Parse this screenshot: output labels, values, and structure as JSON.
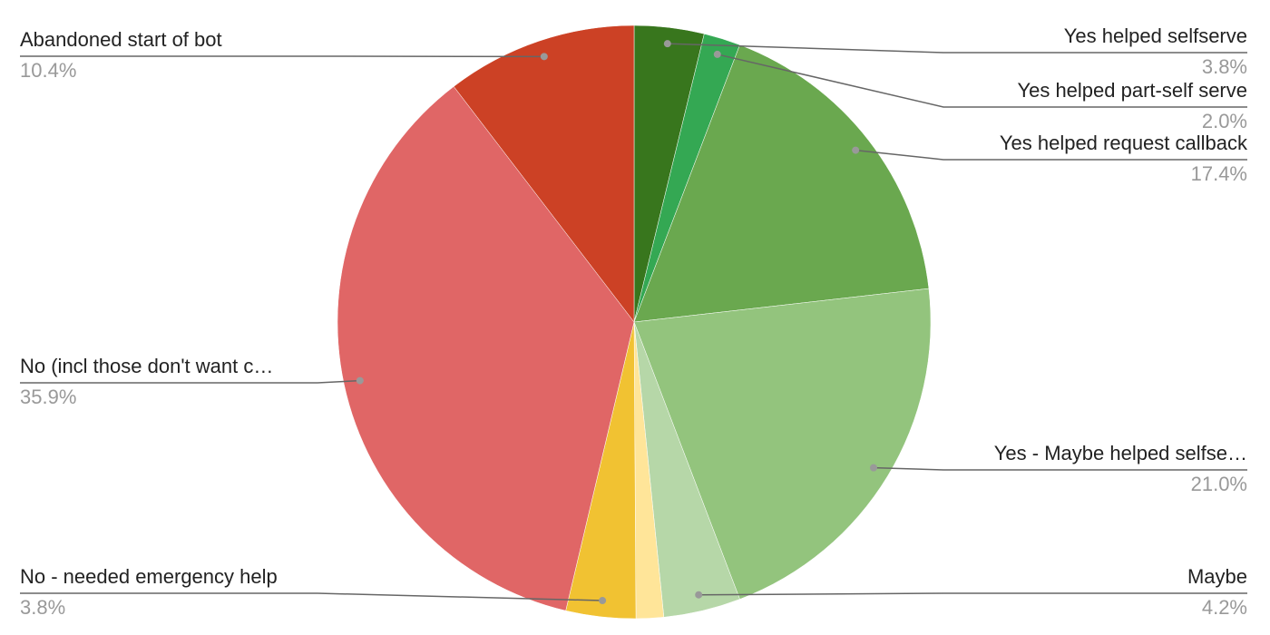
{
  "chart_data": {
    "type": "pie",
    "categories": [
      "Yes helped selfserve",
      "Yes helped part-self serve",
      "Yes helped request callback",
      "Yes - Maybe helped selfse…",
      "Maybe",
      null,
      "No - needed emergency help",
      "No (incl those don't want c…",
      "Abandoned start of bot"
    ],
    "values": [
      3.8,
      2.0,
      17.4,
      21.0,
      4.2,
      1.5,
      3.8,
      35.9,
      10.4
    ],
    "value_labels": [
      "3.8%",
      "2.0%",
      "17.4%",
      "21.0%",
      "4.2%",
      null,
      "3.8%",
      "35.9%",
      "10.4%"
    ],
    "colors": [
      "#38761d",
      "#34a853",
      "#6aa84f",
      "#93c47d",
      "#b6d7a8",
      "#ffe599",
      "#f1c232",
      "#e06666",
      "#cc4125"
    ]
  }
}
